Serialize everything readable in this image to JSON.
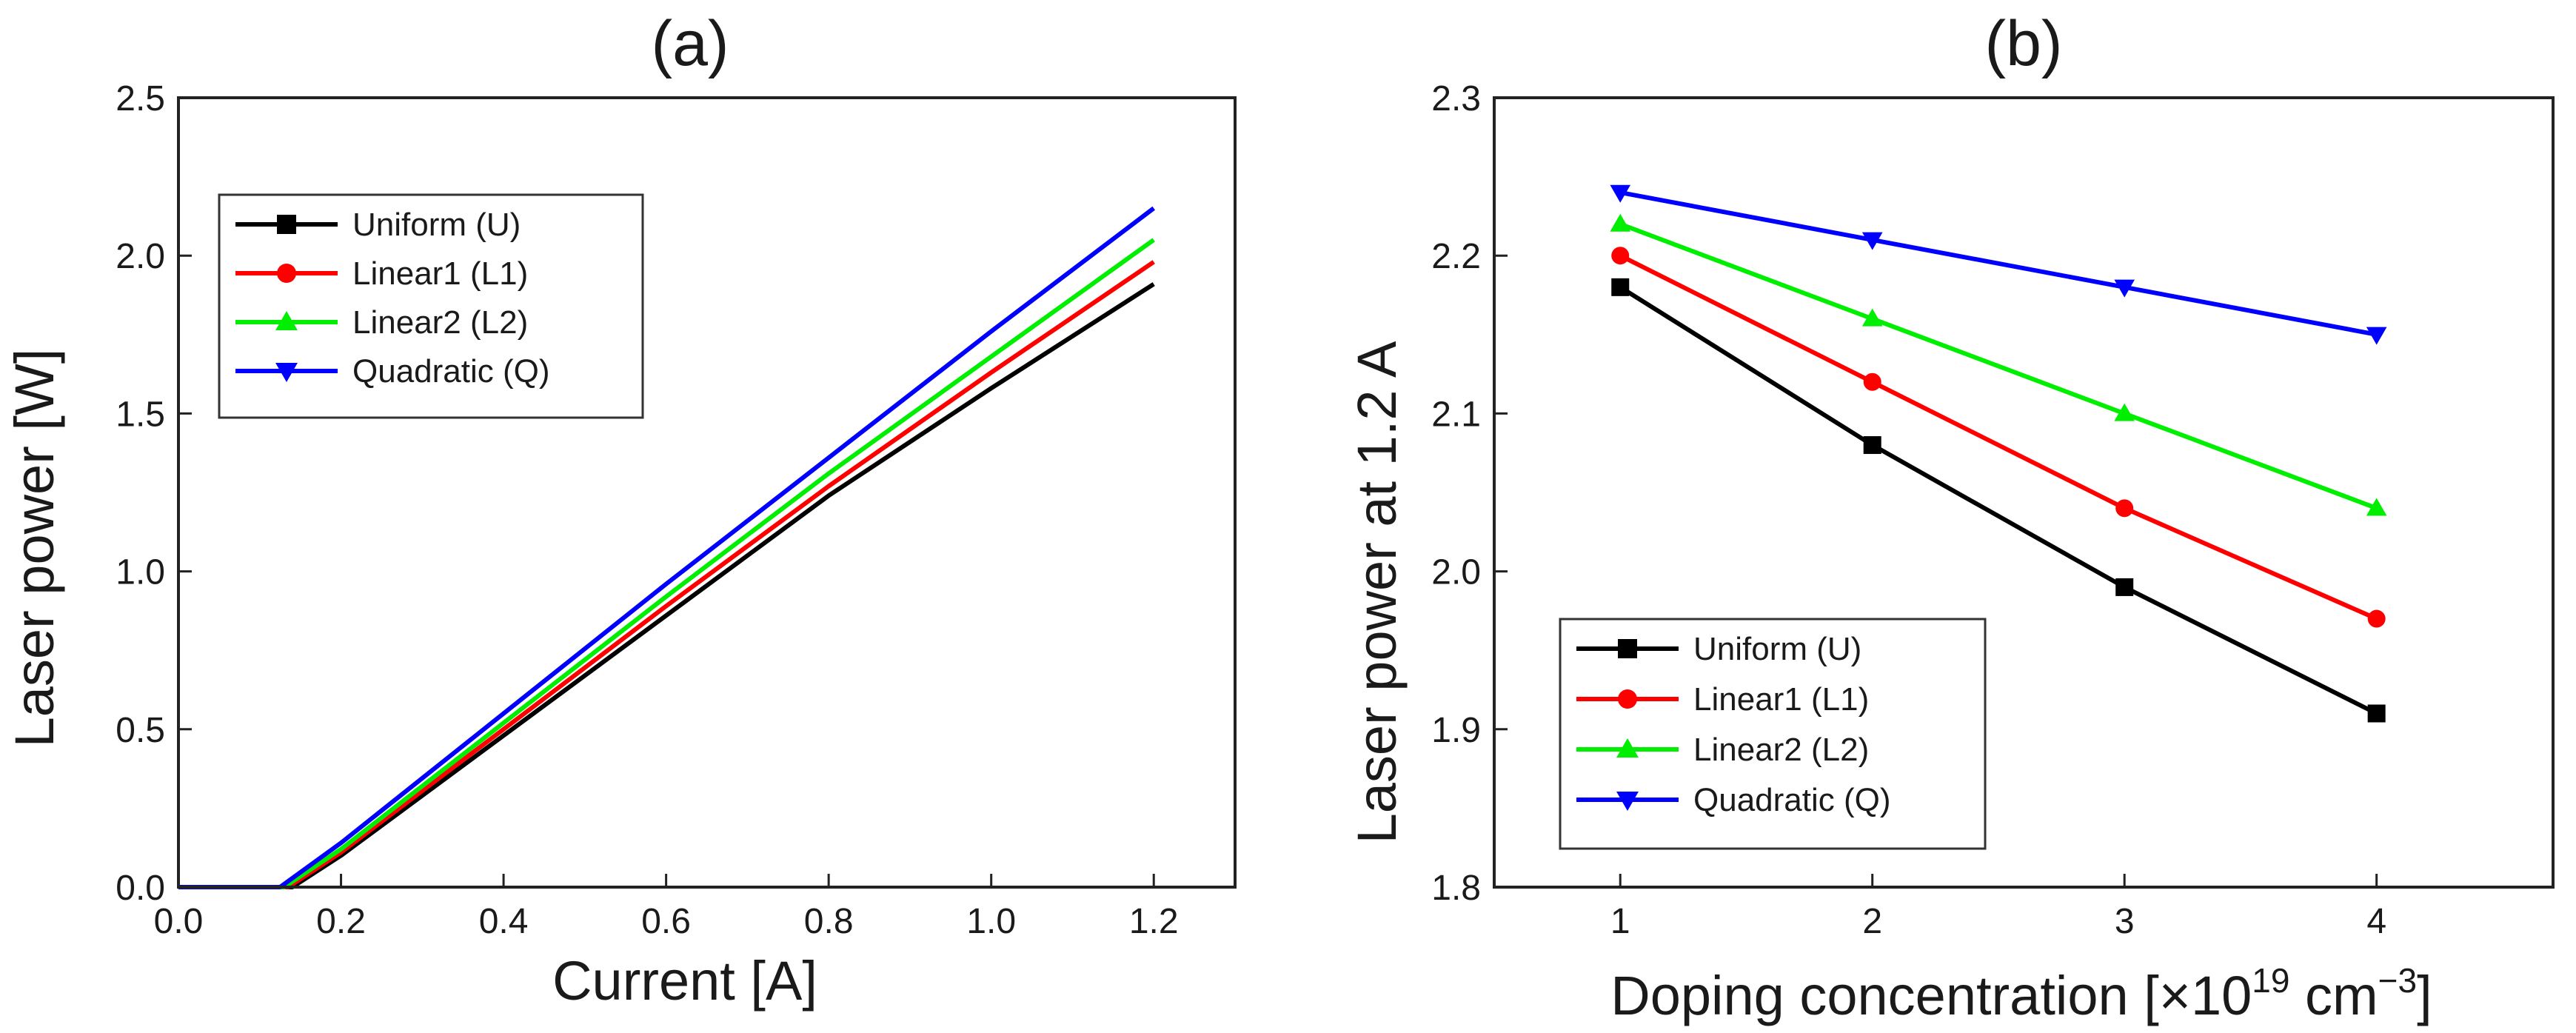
{
  "chart_data": [
    {
      "type": "line",
      "title": "(a)",
      "xlabel": "Current [A]",
      "ylabel": "Laser power [W]",
      "xlim": [
        0.0,
        1.3
      ],
      "ylim": [
        0.0,
        2.5
      ],
      "xticks": [
        0.0,
        0.2,
        0.4,
        0.6,
        0.8,
        1.0,
        1.2
      ],
      "xtick_labels": [
        "0.0",
        "0.2",
        "0.4",
        "0.6",
        "0.8",
        "1.0",
        "1.2"
      ],
      "yticks": [
        0.0,
        0.5,
        1.0,
        1.5,
        2.0,
        2.5
      ],
      "ytick_labels": [
        "0.0",
        "0.5",
        "1.0",
        "1.5",
        "2.0",
        "2.5"
      ],
      "legend_position": "upper-left",
      "series": [
        {
          "name": "Uniform (U)",
          "color": "#000000",
          "marker": "square",
          "x": [
            0.0,
            0.12,
            0.14,
            0.2,
            0.4,
            0.6,
            0.8,
            1.0,
            1.2
          ],
          "y": [
            0.0,
            0.0,
            0.0,
            0.1,
            0.48,
            0.86,
            1.24,
            1.58,
            1.91
          ]
        },
        {
          "name": "Linear1 (L1)",
          "color": "#ff0000",
          "marker": "circle",
          "x": [
            0.0,
            0.12,
            0.135,
            0.2,
            0.4,
            0.6,
            0.8,
            1.0,
            1.2
          ],
          "y": [
            0.0,
            0.0,
            0.0,
            0.11,
            0.5,
            0.89,
            1.27,
            1.63,
            1.98
          ]
        },
        {
          "name": "Linear2 (L2)",
          "color": "#00ee00",
          "marker": "triangle-up",
          "x": [
            0.0,
            0.12,
            0.13,
            0.2,
            0.4,
            0.6,
            0.8,
            1.0,
            1.2
          ],
          "y": [
            0.0,
            0.0,
            0.0,
            0.12,
            0.52,
            0.92,
            1.31,
            1.68,
            2.05
          ]
        },
        {
          "name": "Quadratic (Q)",
          "color": "#0000ff",
          "marker": "triangle-down",
          "x": [
            0.0,
            0.12,
            0.125,
            0.2,
            0.4,
            0.6,
            0.8,
            1.0,
            1.2
          ],
          "y": [
            0.0,
            0.0,
            0.0,
            0.14,
            0.55,
            0.96,
            1.36,
            1.76,
            2.15
          ]
        }
      ]
    },
    {
      "type": "line",
      "title": "(b)",
      "xlabel": "Doping concentration [×10^19 cm^-3]",
      "xlabel_parts": {
        "base": "Doping concentration [×10",
        "sup1": "19",
        "mid": " cm",
        "sup2": "−3",
        "end": "]"
      },
      "ylabel": "Laser power at 1.2 A",
      "xlim": [
        0.5,
        4.7
      ],
      "ylim": [
        1.8,
        2.3
      ],
      "xticks": [
        1,
        2,
        3,
        4
      ],
      "xtick_labels": [
        "1",
        "2",
        "3",
        "4"
      ],
      "yticks": [
        1.8,
        1.9,
        2.0,
        2.1,
        2.2,
        2.3
      ],
      "ytick_labels": [
        "1.8",
        "1.9",
        "2.0",
        "2.1",
        "2.2",
        "2.3"
      ],
      "legend_position": "lower-left",
      "series": [
        {
          "name": "Uniform (U)",
          "color": "#000000",
          "marker": "square",
          "x": [
            1,
            2,
            3,
            4
          ],
          "y": [
            2.18,
            2.08,
            1.99,
            1.91
          ]
        },
        {
          "name": "Linear1 (L1)",
          "color": "#ff0000",
          "marker": "circle",
          "x": [
            1,
            2,
            3,
            4
          ],
          "y": [
            2.2,
            2.12,
            2.04,
            1.97
          ]
        },
        {
          "name": "Linear2 (L2)",
          "color": "#00ee00",
          "marker": "triangle-up",
          "x": [
            1,
            2,
            3,
            4
          ],
          "y": [
            2.22,
            2.16,
            2.1,
            2.04
          ]
        },
        {
          "name": "Quadratic (Q)",
          "color": "#0000ff",
          "marker": "triangle-down",
          "x": [
            1,
            2,
            3,
            4
          ],
          "y": [
            2.24,
            2.21,
            2.18,
            2.15
          ]
        }
      ]
    }
  ]
}
